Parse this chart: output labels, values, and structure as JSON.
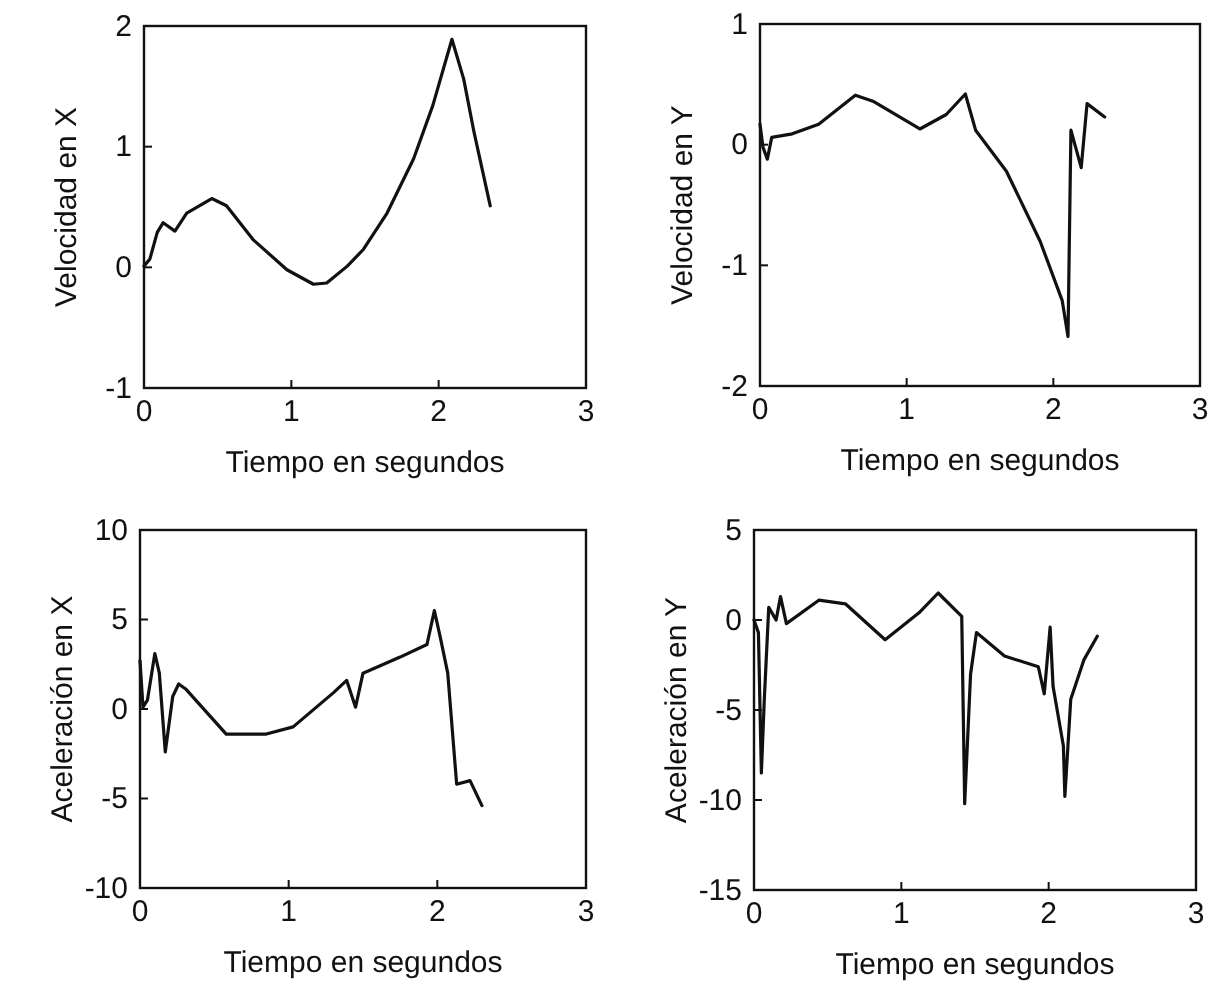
{
  "chart_data": [
    {
      "type": "line",
      "xlabel": "Tiempo en segundos",
      "ylabel": "Velocidad en X",
      "xlim": [
        0,
        3
      ],
      "xticks": [
        0,
        1,
        2,
        3
      ],
      "ylim": [
        -1,
        2
      ],
      "yticks": [
        -1,
        0,
        1,
        2
      ],
      "grid": false,
      "legend": false,
      "series": [
        {
          "color": "#111111",
          "x": [
            0,
            0.04,
            0.09,
            0.13,
            0.21,
            0.29,
            0.46,
            0.56,
            0.74,
            0.97,
            1.15,
            1.24,
            1.38,
            1.49,
            1.65,
            1.83,
            1.96,
            2.09,
            2.17,
            2.24,
            2.35
          ],
          "values": [
            0.01,
            0.07,
            0.29,
            0.37,
            0.3,
            0.45,
            0.57,
            0.51,
            0.23,
            -0.02,
            -0.14,
            -0.13,
            0.01,
            0.15,
            0.45,
            0.9,
            1.34,
            1.89,
            1.56,
            1.12,
            0.51
          ]
        }
      ]
    },
    {
      "type": "line",
      "xlabel": "Tiempo en segundos",
      "ylabel": "Velocidad en Y",
      "xlim": [
        0,
        3
      ],
      "xticks": [
        0,
        1,
        2,
        3
      ],
      "ylim": [
        -2,
        1
      ],
      "yticks": [
        -2,
        -1,
        0,
        1
      ],
      "grid": false,
      "legend": false,
      "series": [
        {
          "color": "#111111",
          "x": [
            0,
            0.02,
            0.05,
            0.08,
            0.22,
            0.4,
            0.65,
            0.77,
            1.09,
            1.27,
            1.4,
            1.47,
            1.68,
            1.91,
            2.06,
            2.1,
            2.12,
            2.19,
            2.23,
            2.35
          ],
          "values": [
            0.17,
            -0.02,
            -0.12,
            0.06,
            0.09,
            0.17,
            0.41,
            0.36,
            0.13,
            0.25,
            0.42,
            0.12,
            -0.22,
            -0.8,
            -1.29,
            -1.59,
            0.12,
            -0.19,
            0.34,
            0.23
          ]
        }
      ]
    },
    {
      "type": "line",
      "xlabel": "Tiempo en segundos",
      "ylabel": "Aceleración en X",
      "xlim": [
        0,
        3
      ],
      "xticks": [
        0,
        1,
        2,
        3
      ],
      "ylim": [
        -10,
        10
      ],
      "yticks": [
        -10,
        -5,
        0,
        5,
        10
      ],
      "grid": false,
      "legend": false,
      "series": [
        {
          "color": "#111111",
          "x": [
            0,
            0.02,
            0.05,
            0.1,
            0.13,
            0.17,
            0.22,
            0.26,
            0.31,
            0.58,
            0.85,
            1.03,
            1.3,
            1.39,
            1.45,
            1.5,
            1.75,
            1.93,
            1.98,
            2.02,
            2.07,
            2.13,
            2.22,
            2.3
          ],
          "values": [
            2.7,
            0.1,
            0.5,
            3.1,
            2.0,
            -2.4,
            0.7,
            1.4,
            1.1,
            -1.4,
            -1.4,
            -1.0,
            0.9,
            1.6,
            0.1,
            2.0,
            2.9,
            3.6,
            5.5,
            4.0,
            2.0,
            -4.2,
            -4.0,
            -5.4
          ]
        }
      ]
    },
    {
      "type": "line",
      "xlabel": "Tiempo en segundos",
      "ylabel": "Aceleración en Y",
      "xlim": [
        0,
        3
      ],
      "xticks": [
        0,
        1,
        2,
        3
      ],
      "ylim": [
        -15,
        5
      ],
      "yticks": [
        -15,
        -10,
        -5,
        0,
        5
      ],
      "grid": false,
      "legend": false,
      "series": [
        {
          "color": "#111111",
          "x": [
            0,
            0.03,
            0.05,
            0.07,
            0.1,
            0.15,
            0.18,
            0.22,
            0.44,
            0.62,
            0.89,
            1.12,
            1.25,
            1.41,
            1.43,
            1.47,
            1.51,
            1.7,
            1.93,
            1.97,
            2.01,
            2.03,
            2.1,
            2.11,
            2.15,
            2.24,
            2.33
          ],
          "values": [
            0,
            -0.7,
            -8.5,
            -4.4,
            0.7,
            0,
            1.3,
            -0.2,
            1.1,
            0.9,
            -1.1,
            0.4,
            1.5,
            0.2,
            -10.2,
            -3.0,
            -0.7,
            -2.0,
            -2.6,
            -4.1,
            -0.4,
            -3.7,
            -7.0,
            -9.8,
            -4.4,
            -2.2,
            -0.9
          ]
        }
      ]
    }
  ]
}
